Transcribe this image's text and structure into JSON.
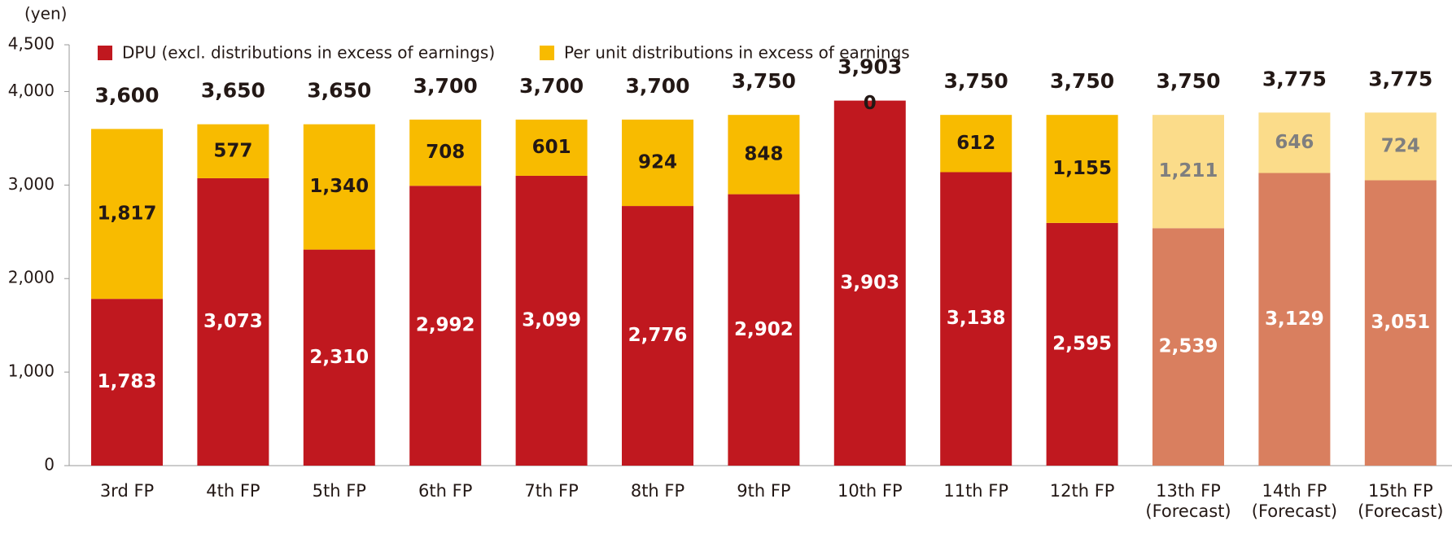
{
  "chart_data": {
    "type": "stacked_bar",
    "y_label": "(yen)",
    "categories": [
      "3rd FP",
      "4th FP",
      "5th FP",
      "6th FP",
      "7th FP",
      "8th FP",
      "9th FP",
      "10th FP",
      "11th FP",
      "12th FP",
      "13th FP\n(Forecast)",
      "14th FP\n(Forecast)",
      "15th FP\n(Forecast)"
    ],
    "series": [
      {
        "name": "DPU (excl. distributions in excess of earnings)",
        "color": "#c0181f",
        "colors": [
          "#c0181f",
          "#c0181f",
          "#c0181f",
          "#c0181f",
          "#c0181f",
          "#c0181f",
          "#c0181f",
          "#c0181f",
          "#c0181f",
          "#c0181f",
          "#d97f5f",
          "#d97f5f",
          "#d97f5f"
        ],
        "value_label_colors": [
          "#ffffff",
          "#ffffff",
          "#ffffff",
          "#ffffff",
          "#ffffff",
          "#ffffff",
          "#ffffff",
          "#ffffff",
          "#ffffff",
          "#ffffff",
          "#ffffff",
          "#ffffff",
          "#ffffff"
        ],
        "values": [
          1783,
          3073,
          2310,
          2992,
          3099,
          2776,
          2902,
          3903,
          3138,
          2595,
          2539,
          3129,
          3051
        ],
        "value_labels": [
          "1,783",
          "3,073",
          "2,310",
          "2,992",
          "3,099",
          "2,776",
          "2,902",
          "3,903",
          "3,138",
          "2,595",
          "2,539",
          "3,129",
          "3,051"
        ]
      },
      {
        "name": "Per unit distributions in excess of earnings",
        "color": "#f8bb00",
        "colors": [
          "#f8bb00",
          "#f8bb00",
          "#f8bb00",
          "#f8bb00",
          "#f8bb00",
          "#f8bb00",
          "#f8bb00",
          "#f8bb00",
          "#f8bb00",
          "#f8bb00",
          "#fbdc8a",
          "#fbdc8a",
          "#fbdc8a"
        ],
        "value_label_colors": [
          "#231815",
          "#231815",
          "#231815",
          "#231815",
          "#231815",
          "#231815",
          "#231815",
          "#231815",
          "#231815",
          "#231815",
          "#7f7f7f",
          "#7f7f7f",
          "#7f7f7f"
        ],
        "values": [
          1817,
          577,
          1340,
          708,
          601,
          924,
          848,
          0,
          612,
          1155,
          1211,
          646,
          724
        ],
        "value_labels": [
          "1,817",
          "577",
          "1,340",
          "708",
          "601",
          "924",
          "848",
          "0",
          "612",
          "1,155",
          "1,211",
          "646",
          "724"
        ]
      }
    ],
    "totals": [
      "3,600",
      "3,650",
      "3,650",
      "3,700",
      "3,700",
      "3,700",
      "3,750",
      "3,903",
      "3,750",
      "3,750",
      "3,750",
      "3,775",
      "3,775"
    ],
    "ylim": [
      0,
      4500
    ],
    "yticks": [
      0,
      {
        "value": 1000,
        "label": "1,000"
      },
      {
        "value": 2000,
        "label": "2,000"
      },
      {
        "value": 3000,
        "label": "3,000"
      },
      {
        "value": 4000,
        "label": "4,000"
      },
      {
        "value": 4500,
        "label": "4,500"
      }
    ]
  }
}
